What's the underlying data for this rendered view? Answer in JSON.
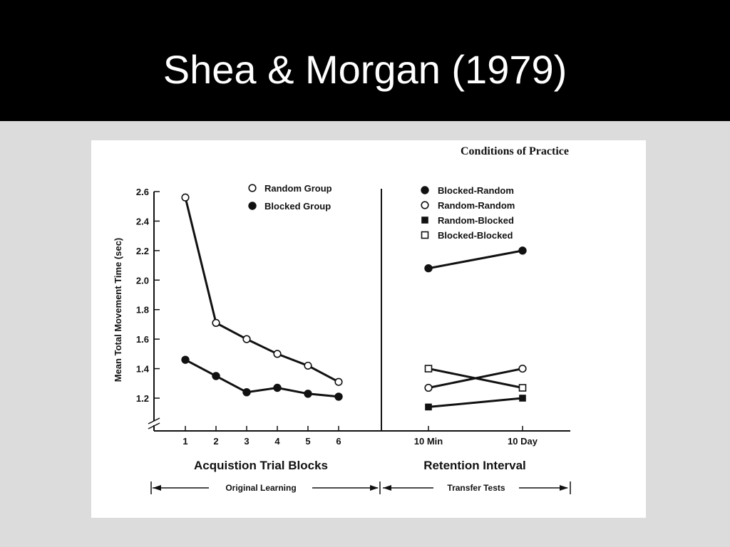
{
  "slide": {
    "title": "Shea & Morgan (1979)"
  },
  "colors": {
    "header_bg": "#000000",
    "title_text": "#ffffff",
    "slide_bg": "#dcdcdc",
    "figure_bg": "#ffffff",
    "ink": "#111111"
  },
  "chart_data": [
    {
      "panel": "acquisition",
      "type": "line",
      "title": "Conditions of Practice",
      "ylabel": "Mean Total Movement Time (sec)",
      "xlabel": "Acquistion Trial Blocks",
      "ylim": [
        1.0,
        2.6
      ],
      "yticks": [
        "1.2",
        "1.4",
        "1.6",
        "1.8",
        "2.0",
        "2.2",
        "2.4",
        "2.6"
      ],
      "categories": [
        "1",
        "2",
        "3",
        "4",
        "5",
        "6"
      ],
      "axis_break": true,
      "series": [
        {
          "name": "Random Group",
          "marker": "open-circle",
          "values": [
            2.56,
            1.71,
            1.6,
            1.5,
            1.42,
            1.31
          ]
        },
        {
          "name": "Blocked Group",
          "marker": "filled-circle",
          "values": [
            1.46,
            1.35,
            1.24,
            1.27,
            1.23,
            1.21
          ]
        }
      ],
      "legend_position": "top-right",
      "bracket_label": "Original Learning"
    },
    {
      "panel": "retention",
      "type": "line",
      "xlabel": "Retention Interval",
      "ylim": [
        1.0,
        2.6
      ],
      "categories": [
        "10 Min",
        "10 Day"
      ],
      "series": [
        {
          "name": "Blocked-Random",
          "marker": "filled-circle",
          "values": [
            2.08,
            2.2
          ]
        },
        {
          "name": "Random-Random",
          "marker": "open-circle",
          "values": [
            1.27,
            1.4
          ]
        },
        {
          "name": "Random-Blocked",
          "marker": "filled-square",
          "values": [
            1.14,
            1.2
          ]
        },
        {
          "name": "Blocked-Blocked",
          "marker": "open-square",
          "values": [
            1.4,
            1.27
          ]
        }
      ],
      "legend_position": "top",
      "bracket_label": "Transfer Tests"
    }
  ]
}
